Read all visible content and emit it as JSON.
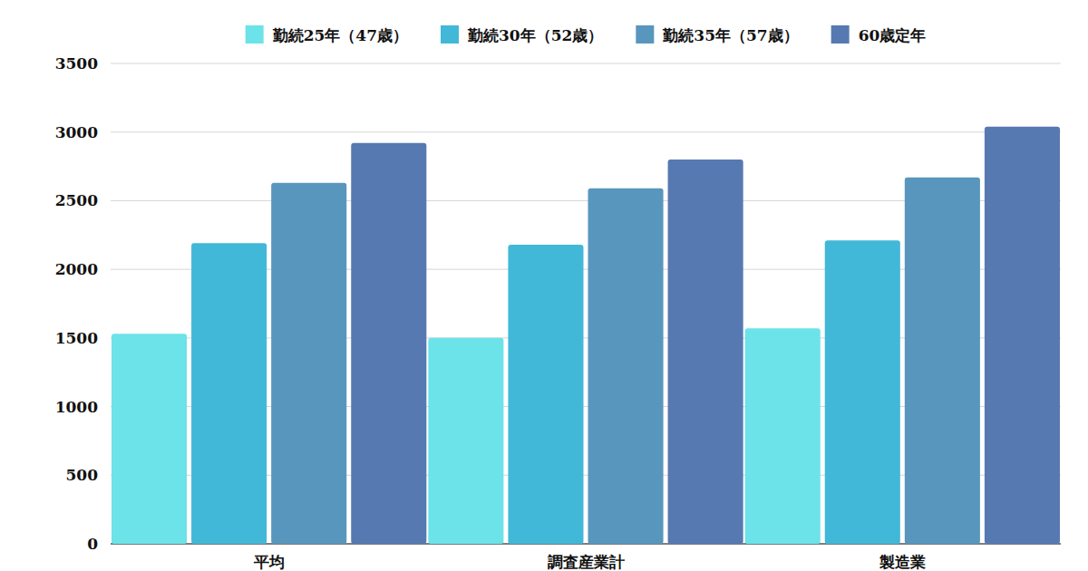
{
  "chart_data": {
    "type": "bar",
    "categories": [
      "平均",
      "調査産業計",
      "製造業"
    ],
    "series": [
      {
        "name": "勤続25年（47歳）",
        "color": "#6be3e8",
        "values": [
          1530,
          1500,
          1570
        ]
      },
      {
        "name": "勤続30年（52歳）",
        "color": "#42b8d8",
        "values": [
          2190,
          2180,
          2210
        ]
      },
      {
        "name": "勤続35年（57歳）",
        "color": "#5896bd",
        "values": [
          2630,
          2590,
          2670
        ]
      },
      {
        "name": "60歳定年",
        "color": "#5679b1",
        "values": [
          2920,
          2800,
          3040
        ]
      }
    ],
    "ylim": [
      0,
      3500
    ],
    "yticks": [
      0,
      500,
      1000,
      1500,
      2000,
      2500,
      3000,
      3500
    ],
    "grid": true,
    "legend": "top"
  }
}
